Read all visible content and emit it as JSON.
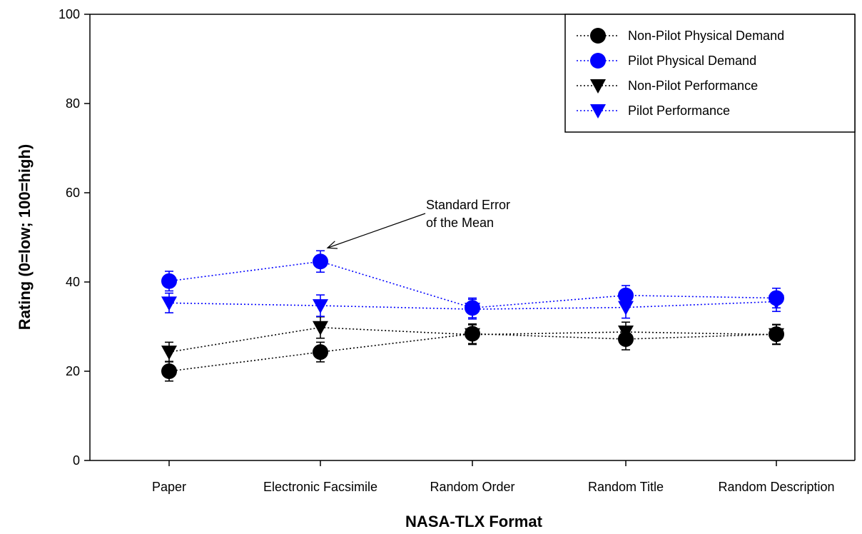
{
  "chart_data": {
    "type": "line",
    "title": "",
    "xlabel": "NASA-TLX Format",
    "ylabel": "Rating (0=low; 100=high)",
    "ylim": [
      0,
      100
    ],
    "yticks": [
      0,
      20,
      40,
      60,
      80,
      100
    ],
    "grid": false,
    "legend": "top-right",
    "categories": [
      "Paper",
      "Electronic Facsimile",
      "Random Order",
      "Random Title",
      "Random Description"
    ],
    "series": [
      {
        "name": "Non-Pilot Physical Demand",
        "marker": "circle",
        "color": "#000000",
        "values": [
          20,
          24.3,
          28.4,
          27.2,
          28.3
        ],
        "error": [
          2.2,
          2.2,
          2.2,
          2.4,
          2.2
        ]
      },
      {
        "name": "Pilot Physical Demand",
        "marker": "circle",
        "color": "#0000ff",
        "values": [
          40.2,
          44.6,
          34.2,
          37,
          36.4
        ],
        "error": [
          2.2,
          2.4,
          2.2,
          2.2,
          2.2
        ]
      },
      {
        "name": "Non-Pilot Performance",
        "marker": "triangle-down",
        "color": "#000000",
        "values": [
          24.3,
          29.8,
          28.2,
          28.8,
          28.2
        ],
        "error": [
          2.2,
          2.4,
          2.2,
          2.2,
          2.2
        ]
      },
      {
        "name": "Pilot Performance",
        "marker": "triangle-down",
        "color": "#0000ff",
        "values": [
          35.3,
          34.7,
          33.9,
          34.3,
          35.6
        ],
        "error": [
          2.2,
          2.4,
          2.2,
          2.4,
          2.2
        ]
      }
    ],
    "annotation": {
      "lines": [
        "Standard Error",
        "of the Mean"
      ],
      "target_category": 1,
      "target_series": 1
    }
  }
}
